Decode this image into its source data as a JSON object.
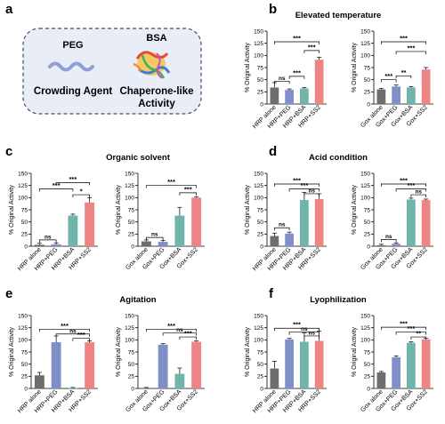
{
  "colors": {
    "gray": "#6d6d6d",
    "blue": "#7f8fc7",
    "teal": "#6fb5aa",
    "pink": "#ee8584",
    "axis": "#000000",
    "box_stroke": "#4a4a6a",
    "box_fill": "#e8edf6"
  },
  "panel_a": {
    "letter": "a",
    "peg_title": "PEG",
    "bsa_title": "BSA",
    "peg_caption": "Crowding Agent",
    "bsa_caption_line1": "Chaperone-like",
    "bsa_caption_line2": "Activity",
    "peg_icon": "wavy-line-icon",
    "bsa_icon": "protein-ribbon-icon"
  },
  "chart_data": [
    {
      "panel": "b",
      "panel_title": "Elevated temperature",
      "type": "bar",
      "categories": [
        "HRP alone",
        "HRP+PEG",
        "HRP+BSA",
        "HRP+SS2"
      ],
      "values": [
        34,
        29,
        32,
        91
      ],
      "errors": [
        10,
        2,
        2,
        5
      ],
      "ylabel": "% Original Activity",
      "ylim": [
        0,
        150
      ],
      "yticks": [
        0,
        25,
        50,
        75,
        100,
        125,
        150
      ],
      "annotations": [
        "ns",
        "***",
        "***"
      ]
    },
    {
      "panel": "b",
      "panel_title": "Elevated temperature",
      "type": "bar",
      "categories": [
        "Gox alone",
        "Gox+PEG",
        "Gox+BSA",
        "Gox+SS2"
      ],
      "values": [
        30,
        36,
        34,
        71
      ],
      "errors": [
        2,
        3,
        2,
        4
      ],
      "ylabel": "% Original Activity",
      "ylim": [
        0,
        150
      ],
      "yticks": [
        0,
        25,
        50,
        75,
        100,
        125,
        150
      ],
      "annotations": [
        "***",
        "**",
        "***",
        "***"
      ]
    },
    {
      "panel": "c",
      "panel_title": "Organic solvent",
      "type": "bar",
      "categories": [
        "HRP alone",
        "HRP+PEG",
        "HRP+BSA",
        "HRP+SS2"
      ],
      "values": [
        3,
        4,
        63,
        90
      ],
      "errors": [
        3,
        3,
        3,
        10
      ],
      "ylabel": "% Original Activity",
      "ylim": [
        0,
        150
      ],
      "yticks": [
        0,
        25,
        50,
        75,
        100,
        125,
        150
      ],
      "annotations": [
        "ns",
        "***",
        "***",
        "*"
      ]
    },
    {
      "panel": "c",
      "panel_title": "Organic solvent",
      "type": "bar",
      "categories": [
        "Gox alone",
        "Gox+PEG",
        "Gox+BSA",
        "Gox+SS2"
      ],
      "values": [
        10,
        9,
        63,
        100
      ],
      "errors": [
        3,
        3,
        17,
        2
      ],
      "ylabel": "% Original Activity",
      "ylim": [
        0,
        150
      ],
      "yticks": [
        0,
        25,
        50,
        75,
        100,
        125,
        150
      ],
      "annotations": [
        "ns",
        "***",
        "***"
      ]
    },
    {
      "panel": "d",
      "panel_title": "Acid condition",
      "type": "bar",
      "categories": [
        "HRP alone",
        "HRP+PEG",
        "HRP+BSA",
        "HRP+SS2"
      ],
      "values": [
        21,
        26,
        95,
        97
      ],
      "errors": [
        6,
        3,
        16,
        11
      ],
      "ylabel": "% Original Activity",
      "ylim": [
        0,
        150
      ],
      "yticks": [
        0,
        25,
        50,
        75,
        100,
        125,
        150
      ],
      "annotations": [
        "ns",
        "***",
        "***",
        "ns"
      ]
    },
    {
      "panel": "d",
      "panel_title": "Acid condition",
      "type": "bar",
      "categories": [
        "Gox alone",
        "Gox+PEG",
        "Gox+BSA",
        "Gox+SS2"
      ],
      "values": [
        2,
        5,
        96,
        95
      ],
      "errors": [
        2,
        2,
        3,
        2
      ],
      "ylabel": "% Original Activity",
      "ylim": [
        0,
        150
      ],
      "yticks": [
        0,
        25,
        50,
        75,
        100,
        125,
        150
      ],
      "annotations": [
        "ns",
        "***",
        "***",
        "ns"
      ]
    },
    {
      "panel": "e",
      "panel_title": "Agitation",
      "type": "bar",
      "categories": [
        "HRP alone",
        "HRP+PEG",
        "HRP+BSA",
        "HRP+SS2"
      ],
      "values": [
        27,
        95,
        1,
        95
      ],
      "errors": [
        6,
        13,
        1,
        3
      ],
      "ylabel": "% Original Activity",
      "ylim": [
        0,
        150
      ],
      "yticks": [
        0,
        25,
        50,
        75,
        100,
        125,
        150
      ],
      "annotations": [
        "***",
        "ns",
        "***"
      ]
    },
    {
      "panel": "e",
      "panel_title": "Agitation",
      "type": "bar",
      "categories": [
        "Gox alone",
        "Gox+PEG",
        "Gox+BSA",
        "Gox+SS2"
      ],
      "values": [
        1,
        90,
        30,
        96
      ],
      "errors": [
        1,
        2,
        12,
        2
      ],
      "ylabel": "% Original Activity",
      "ylim": [
        0,
        150
      ],
      "yticks": [
        0,
        25,
        50,
        75,
        100,
        125,
        150
      ],
      "annotations": [
        "***",
        "ns",
        "***"
      ]
    },
    {
      "panel": "f",
      "panel_title": "Lyophilization",
      "type": "bar",
      "categories": [
        "HRP alone",
        "HRP+PEG",
        "HRP+BSA",
        "HRP+SS2"
      ],
      "values": [
        41,
        101,
        96,
        98
      ],
      "errors": [
        15,
        2,
        18,
        20
      ],
      "ylabel": "% Original Activity",
      "ylim": [
        0,
        150
      ],
      "yticks": [
        0,
        25,
        50,
        75,
        100,
        125,
        150
      ],
      "annotations": [
        "***",
        "ns",
        "ns"
      ]
    },
    {
      "panel": "f",
      "panel_title": "Lyophilization",
      "type": "bar",
      "categories": [
        "Gox alone",
        "Gox+PEG",
        "Gox+BSA",
        "Gox+SS2"
      ],
      "values": [
        33,
        64,
        94,
        101
      ],
      "errors": [
        2,
        3,
        2,
        2
      ],
      "ylabel": "% Original Activity",
      "ylim": [
        0,
        150
      ],
      "yticks": [
        0,
        25,
        50,
        75,
        100,
        125,
        150
      ],
      "annotations": [
        "***",
        "***",
        "**"
      ]
    }
  ]
}
